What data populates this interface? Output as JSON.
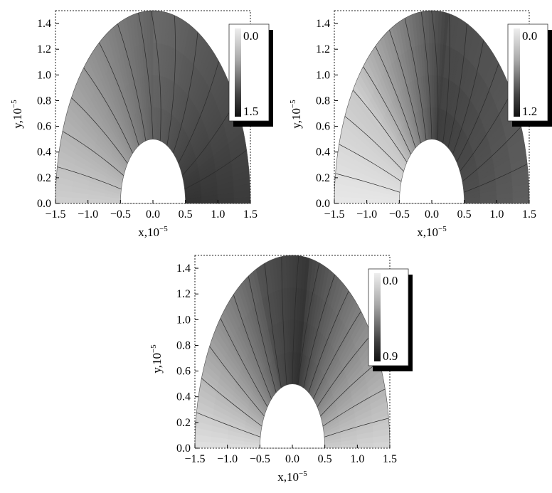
{
  "chart_data": [
    {
      "type": "heatmap",
      "title": "",
      "xlabel": "x,10",
      "xlabel_exp": "−5",
      "ylabel": "y,10",
      "ylabel_exp": "−5",
      "xlim": [
        -1.5,
        1.5
      ],
      "ylim": [
        0.0,
        1.5
      ],
      "x_ticks": [
        "−1.5",
        "−1.0",
        "−0.5",
        "0.0",
        "0.5",
        "1.0",
        "1.5"
      ],
      "y_ticks": [
        "0.0",
        "0.2",
        "0.4",
        "0.6",
        "0.8",
        "1.0",
        "1.2",
        "1.4"
      ],
      "domain": {
        "shape": "half-annulus",
        "inner_radius": 0.5,
        "outer_radius": 1.5
      },
      "colorbar": {
        "min_label": "0.0",
        "max_label": "1.5",
        "min": 0.0,
        "max": 1.5,
        "colormap": "grayscale-light-to-dark"
      }
    },
    {
      "type": "heatmap",
      "title": "",
      "xlabel": "x,10",
      "xlabel_exp": "−5",
      "ylabel": "y,10",
      "ylabel_exp": "−5",
      "xlim": [
        -1.5,
        1.5
      ],
      "ylim": [
        0.0,
        1.5
      ],
      "x_ticks": [
        "−1.5",
        "−1.0",
        "−0.5",
        "0.0",
        "0.5",
        "1.0",
        "1.5"
      ],
      "y_ticks": [
        "0.0",
        "0.2",
        "0.4",
        "0.6",
        "0.8",
        "1.0",
        "1.2",
        "1.4"
      ],
      "domain": {
        "shape": "half-annulus",
        "inner_radius": 0.5,
        "outer_radius": 1.5
      },
      "colorbar": {
        "min_label": "0.0",
        "max_label": "1.2",
        "min": 0.0,
        "max": 1.2,
        "colormap": "grayscale-light-to-dark"
      }
    },
    {
      "type": "heatmap",
      "title": "",
      "xlabel": "x,10",
      "xlabel_exp": "−5",
      "ylabel": "y,10",
      "ylabel_exp": "−5",
      "xlim": [
        -1.5,
        1.5
      ],
      "ylim": [
        0.0,
        1.5
      ],
      "x_ticks": [
        "−1.5",
        "−1.0",
        "−0.5",
        "0.0",
        "0.5",
        "1.0",
        "1.5"
      ],
      "y_ticks": [
        "0.0",
        "0.2",
        "0.4",
        "0.6",
        "0.8",
        "1.0",
        "1.2",
        "1.4"
      ],
      "domain": {
        "shape": "half-annulus",
        "inner_radius": 0.5,
        "outer_radius": 1.5
      },
      "colorbar": {
        "min_label": "0.0",
        "max_label": "0.9",
        "min": 0.0,
        "max": 0.9,
        "colormap": "grayscale-light-to-dark"
      }
    }
  ]
}
